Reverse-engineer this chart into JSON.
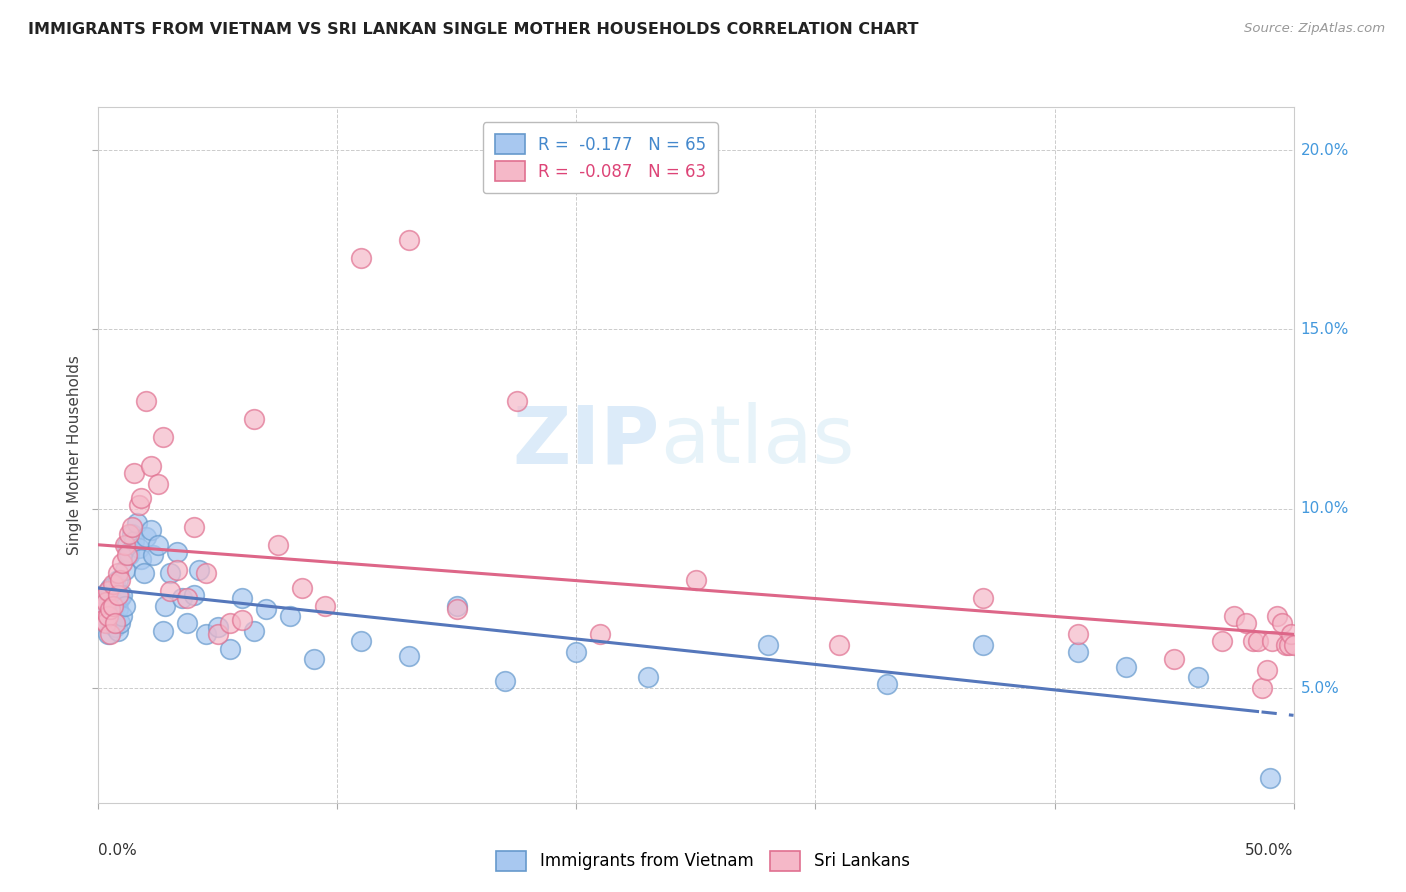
{
  "title": "IMMIGRANTS FROM VIETNAM VS SRI LANKAN SINGLE MOTHER HOUSEHOLDS CORRELATION CHART",
  "source": "Source: ZipAtlas.com",
  "ylabel": "Single Mother Households",
  "xlim": [
    0.0,
    0.5
  ],
  "ylim": [
    0.018,
    0.212
  ],
  "yticks": [
    0.05,
    0.1,
    0.15,
    0.2
  ],
  "ytick_labels": [
    "5.0%",
    "10.0%",
    "15.0%",
    "20.0%"
  ],
  "xticks": [
    0.0,
    0.1,
    0.2,
    0.3,
    0.4,
    0.5
  ],
  "background_color": "#ffffff",
  "grid_color": "#cccccc",
  "legend_R1": "R =  -0.177",
  "legend_N1": "N = 65",
  "legend_R2": "R =  -0.087",
  "legend_N2": "N = 63",
  "blue_fill": "#a8c8f0",
  "pink_fill": "#f5b8c8",
  "blue_edge": "#6699cc",
  "pink_edge": "#e07090",
  "blue_line": "#5577bb",
  "pink_line": "#dd6688",
  "watermark_zip": "ZIP",
  "watermark_atlas": "atlas",
  "vietnam_x": [
    0.001,
    0.002,
    0.002,
    0.003,
    0.003,
    0.004,
    0.004,
    0.005,
    0.005,
    0.006,
    0.006,
    0.007,
    0.007,
    0.007,
    0.008,
    0.008,
    0.008,
    0.009,
    0.009,
    0.01,
    0.01,
    0.011,
    0.011,
    0.012,
    0.013,
    0.013,
    0.014,
    0.015,
    0.016,
    0.017,
    0.018,
    0.019,
    0.02,
    0.022,
    0.023,
    0.025,
    0.027,
    0.028,
    0.03,
    0.033,
    0.035,
    0.037,
    0.04,
    0.042,
    0.045,
    0.05,
    0.055,
    0.06,
    0.065,
    0.07,
    0.08,
    0.09,
    0.11,
    0.13,
    0.15,
    0.17,
    0.2,
    0.23,
    0.28,
    0.33,
    0.37,
    0.41,
    0.43,
    0.46,
    0.49
  ],
  "vietnam_y": [
    0.073,
    0.07,
    0.076,
    0.068,
    0.072,
    0.075,
    0.065,
    0.071,
    0.078,
    0.069,
    0.074,
    0.067,
    0.073,
    0.079,
    0.066,
    0.072,
    0.08,
    0.068,
    0.075,
    0.07,
    0.076,
    0.073,
    0.083,
    0.09,
    0.088,
    0.087,
    0.093,
    0.091,
    0.096,
    0.089,
    0.086,
    0.082,
    0.092,
    0.094,
    0.087,
    0.09,
    0.066,
    0.073,
    0.082,
    0.088,
    0.075,
    0.068,
    0.076,
    0.083,
    0.065,
    0.067,
    0.061,
    0.075,
    0.066,
    0.072,
    0.07,
    0.058,
    0.063,
    0.059,
    0.073,
    0.052,
    0.06,
    0.053,
    0.062,
    0.051,
    0.062,
    0.06,
    0.056,
    0.053,
    0.025
  ],
  "srilanka_x": [
    0.001,
    0.002,
    0.002,
    0.003,
    0.003,
    0.004,
    0.004,
    0.005,
    0.005,
    0.006,
    0.006,
    0.007,
    0.008,
    0.008,
    0.009,
    0.01,
    0.011,
    0.012,
    0.013,
    0.014,
    0.015,
    0.017,
    0.018,
    0.02,
    0.022,
    0.025,
    0.027,
    0.03,
    0.033,
    0.037,
    0.04,
    0.045,
    0.05,
    0.055,
    0.06,
    0.065,
    0.075,
    0.085,
    0.095,
    0.11,
    0.13,
    0.15,
    0.175,
    0.21,
    0.25,
    0.31,
    0.37,
    0.41,
    0.45,
    0.47,
    0.475,
    0.48,
    0.483,
    0.485,
    0.487,
    0.489,
    0.491,
    0.493,
    0.495,
    0.497,
    0.498,
    0.499,
    0.5
  ],
  "srilanka_y": [
    0.072,
    0.069,
    0.075,
    0.068,
    0.074,
    0.07,
    0.077,
    0.072,
    0.065,
    0.073,
    0.079,
    0.068,
    0.082,
    0.076,
    0.08,
    0.085,
    0.09,
    0.087,
    0.093,
    0.095,
    0.11,
    0.101,
    0.103,
    0.13,
    0.112,
    0.107,
    0.12,
    0.077,
    0.083,
    0.075,
    0.095,
    0.082,
    0.065,
    0.068,
    0.069,
    0.125,
    0.09,
    0.078,
    0.073,
    0.17,
    0.175,
    0.072,
    0.13,
    0.065,
    0.08,
    0.062,
    0.075,
    0.065,
    0.058,
    0.063,
    0.07,
    0.068,
    0.063,
    0.063,
    0.05,
    0.055,
    0.063,
    0.07,
    0.068,
    0.062,
    0.062,
    0.065,
    0.062
  ]
}
